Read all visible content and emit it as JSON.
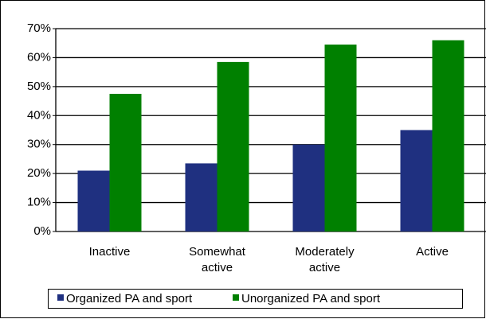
{
  "chart_data": {
    "type": "bar",
    "categories": [
      "Inactive",
      "Somewhat active",
      "Moderately active",
      "Active"
    ],
    "series": [
      {
        "name": "Organized PA and sport",
        "color": "#1f3080",
        "values": [
          21,
          23.5,
          30,
          35
        ]
      },
      {
        "name": "Unorganized PA and sport",
        "color": "#008000",
        "values": [
          47.5,
          58.5,
          64.5,
          66
        ]
      }
    ],
    "ylim": [
      0,
      70
    ],
    "yticks": [
      {
        "value": 0,
        "label": "0%"
      },
      {
        "value": 10,
        "label": "10%"
      },
      {
        "value": 20,
        "label": "20%"
      },
      {
        "value": 30,
        "label": "30%"
      },
      {
        "value": 40,
        "label": "40%"
      },
      {
        "value": 50,
        "label": "50%"
      },
      {
        "value": 60,
        "label": "60%"
      },
      {
        "value": 70,
        "label": "70%"
      }
    ],
    "grid": true
  }
}
